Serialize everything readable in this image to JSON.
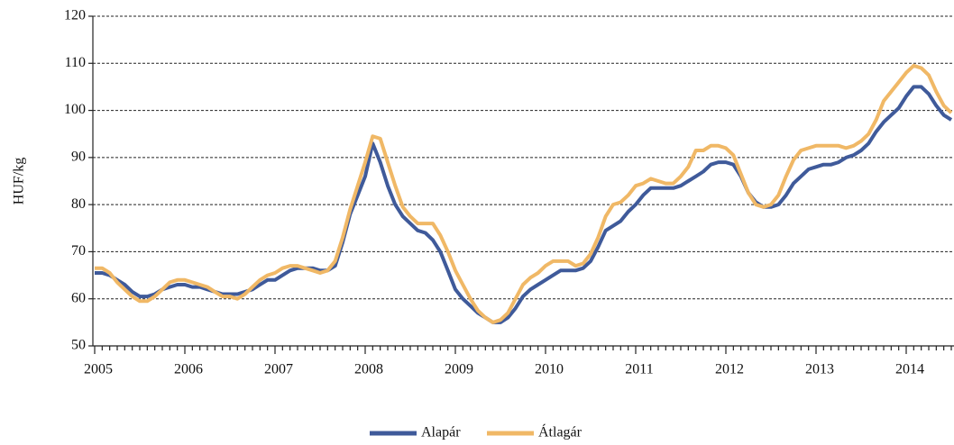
{
  "chart_data": {
    "type": "line",
    "y_label": "HUF/kg",
    "categories": [
      "2005",
      null,
      null,
      null,
      null,
      null,
      null,
      null,
      null,
      null,
      null,
      null,
      "2006",
      null,
      null,
      null,
      null,
      null,
      null,
      null,
      null,
      null,
      null,
      null,
      "2007",
      null,
      null,
      null,
      null,
      null,
      null,
      null,
      null,
      null,
      null,
      null,
      "2008",
      null,
      null,
      null,
      null,
      null,
      null,
      null,
      null,
      null,
      null,
      null,
      "2009",
      null,
      null,
      null,
      null,
      null,
      null,
      null,
      null,
      null,
      null,
      null,
      "2010",
      null,
      null,
      null,
      null,
      null,
      null,
      null,
      null,
      null,
      null,
      null,
      "2011",
      null,
      null,
      null,
      null,
      null,
      null,
      null,
      null,
      null,
      null,
      null,
      "2012",
      null,
      null,
      null,
      null,
      null,
      null,
      null,
      null,
      null,
      null,
      null,
      "2013",
      null,
      null,
      null,
      null,
      null,
      null,
      null,
      null,
      null,
      null,
      null,
      "2014",
      null,
      null,
      null,
      null,
      null,
      null
    ],
    "series": [
      {
        "name": "Alapár",
        "color": "#3f5a9a",
        "values": [
          65.5,
          65.5,
          65,
          64,
          63,
          61.5,
          60.5,
          60.5,
          61,
          62,
          62.5,
          63,
          63,
          62.5,
          62.5,
          62,
          61.5,
          61,
          61,
          61,
          61.5,
          62,
          63,
          64,
          64,
          65,
          66,
          66.5,
          66.5,
          66.5,
          66,
          66,
          67,
          72,
          78,
          82,
          86,
          93,
          89,
          84,
          80,
          77.5,
          76,
          74.5,
          74,
          72.5,
          70,
          66,
          62,
          60,
          58.5,
          57,
          56,
          55,
          55,
          56,
          58,
          60.5,
          62,
          63,
          64,
          65,
          66,
          66,
          66,
          66.5,
          68,
          71,
          74.5,
          75.5,
          76.5,
          78.5,
          80,
          82,
          83.5,
          83.5,
          83.5,
          83.5,
          84,
          85,
          86,
          87,
          88.5,
          89,
          89,
          88.5,
          86,
          82.5,
          80.5,
          79.5,
          79.5,
          80,
          82,
          84.5,
          86,
          87.5,
          88,
          88.5,
          88.5,
          89,
          90,
          90.5,
          91.5,
          93,
          95.5,
          97.5,
          99,
          100.5,
          103,
          105,
          105,
          103.5,
          101,
          99,
          98
        ]
      },
      {
        "name": "Átlagár",
        "color": "#f0b866",
        "values": [
          66.5,
          66.5,
          65.5,
          63.5,
          62,
          60.5,
          59.5,
          59.5,
          60.5,
          62,
          63.5,
          64,
          64,
          63.5,
          63,
          62.5,
          61.5,
          60.5,
          60.5,
          60,
          61,
          62.5,
          64,
          65,
          65.5,
          66.5,
          67,
          67,
          66.5,
          66,
          65.5,
          66,
          68,
          73,
          79,
          84,
          89,
          94.5,
          94,
          89,
          84,
          79.5,
          77.5,
          76,
          76,
          76,
          73.5,
          70,
          66,
          63,
          60,
          57.5,
          56,
          55,
          55.5,
          57,
          60,
          63,
          64.5,
          65.5,
          67,
          68,
          68,
          68,
          67,
          67.5,
          69.5,
          73,
          77.5,
          80,
          80.5,
          82,
          84,
          84.5,
          85.5,
          85,
          84.5,
          84.5,
          86,
          88,
          91.5,
          91.5,
          92.5,
          92.5,
          92,
          90.5,
          86.5,
          82.5,
          80,
          79.5,
          80,
          82,
          86,
          89.5,
          91.5,
          92,
          92.5,
          92.5,
          92.5,
          92.5,
          92,
          92.5,
          93.5,
          95,
          98,
          102,
          104,
          106,
          108,
          109.5,
          109,
          107.5,
          104,
          101,
          99.5
        ]
      }
    ],
    "ylim": [
      50,
      120
    ],
    "yticks": [
      50,
      60,
      70,
      80,
      90,
      100,
      110,
      120
    ],
    "grid": true,
    "legend": "bottom"
  }
}
